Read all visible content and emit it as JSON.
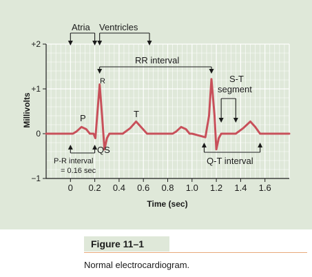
{
  "chart_data": {
    "type": "line",
    "xlabel": "Time (sec)",
    "ylabel": "Millivolts",
    "x_ticks": [
      "0",
      "0.2",
      "0.4",
      "0.6",
      "0.8",
      "1.0",
      "1.2",
      "1.4",
      "1.6"
    ],
    "y_ticks": [
      "+2",
      "+1",
      "0",
      "−1"
    ],
    "xlim": [
      -0.2,
      1.8
    ],
    "ylim": [
      -1,
      2
    ],
    "grid": true,
    "series": [
      {
        "values": [
          [
            -0.2,
            0
          ],
          [
            0.02,
            0
          ],
          [
            0.05,
            0.05
          ],
          [
            0.09,
            0.15
          ],
          [
            0.13,
            0.1
          ],
          [
            0.16,
            0
          ],
          [
            0.19,
            0
          ],
          [
            0.205,
            -0.1
          ],
          [
            0.22,
            0.4
          ],
          [
            0.24,
            1.1
          ],
          [
            0.26,
            0.4
          ],
          [
            0.28,
            -0.35
          ],
          [
            0.3,
            -0.1
          ],
          [
            0.32,
            0
          ],
          [
            0.43,
            0
          ],
          [
            0.49,
            0.12
          ],
          [
            0.54,
            0.27
          ],
          [
            0.58,
            0.15
          ],
          [
            0.63,
            0
          ],
          [
            0.84,
            0
          ],
          [
            0.87,
            0.05
          ],
          [
            0.91,
            0.15
          ],
          [
            0.95,
            0.1
          ],
          [
            0.98,
            0
          ],
          [
            1.0,
            0
          ],
          [
            1.11,
            -0.08
          ],
          [
            1.14,
            0.4
          ],
          [
            1.16,
            1.22
          ],
          [
            1.185,
            0.4
          ],
          [
            1.2,
            -0.35
          ],
          [
            1.22,
            -0.1
          ],
          [
            1.24,
            0
          ],
          [
            1.36,
            0
          ],
          [
            1.42,
            0.12
          ],
          [
            1.48,
            0.27
          ],
          [
            1.52,
            0.15
          ],
          [
            1.56,
            0
          ],
          [
            1.8,
            0
          ]
        ]
      }
    ],
    "annotations": {
      "top_atria": "Atria",
      "top_ventricles": "Ventricles",
      "rr_interval": "RR interval",
      "p": "P",
      "r": "R",
      "t": "T",
      "qs": "QS",
      "st_line1": "S-T",
      "st_line2": "segment",
      "pr_line1": "P-R interval",
      "pr_line2": "= 0.16 sec",
      "qt_interval": "Q-T interval"
    }
  },
  "colors": {
    "trace": "#c8505a",
    "background": "#dfe8d9",
    "grid": "#ffffff"
  },
  "figure": {
    "label": "Figure 11–1",
    "caption": "Normal electrocardiogram."
  }
}
